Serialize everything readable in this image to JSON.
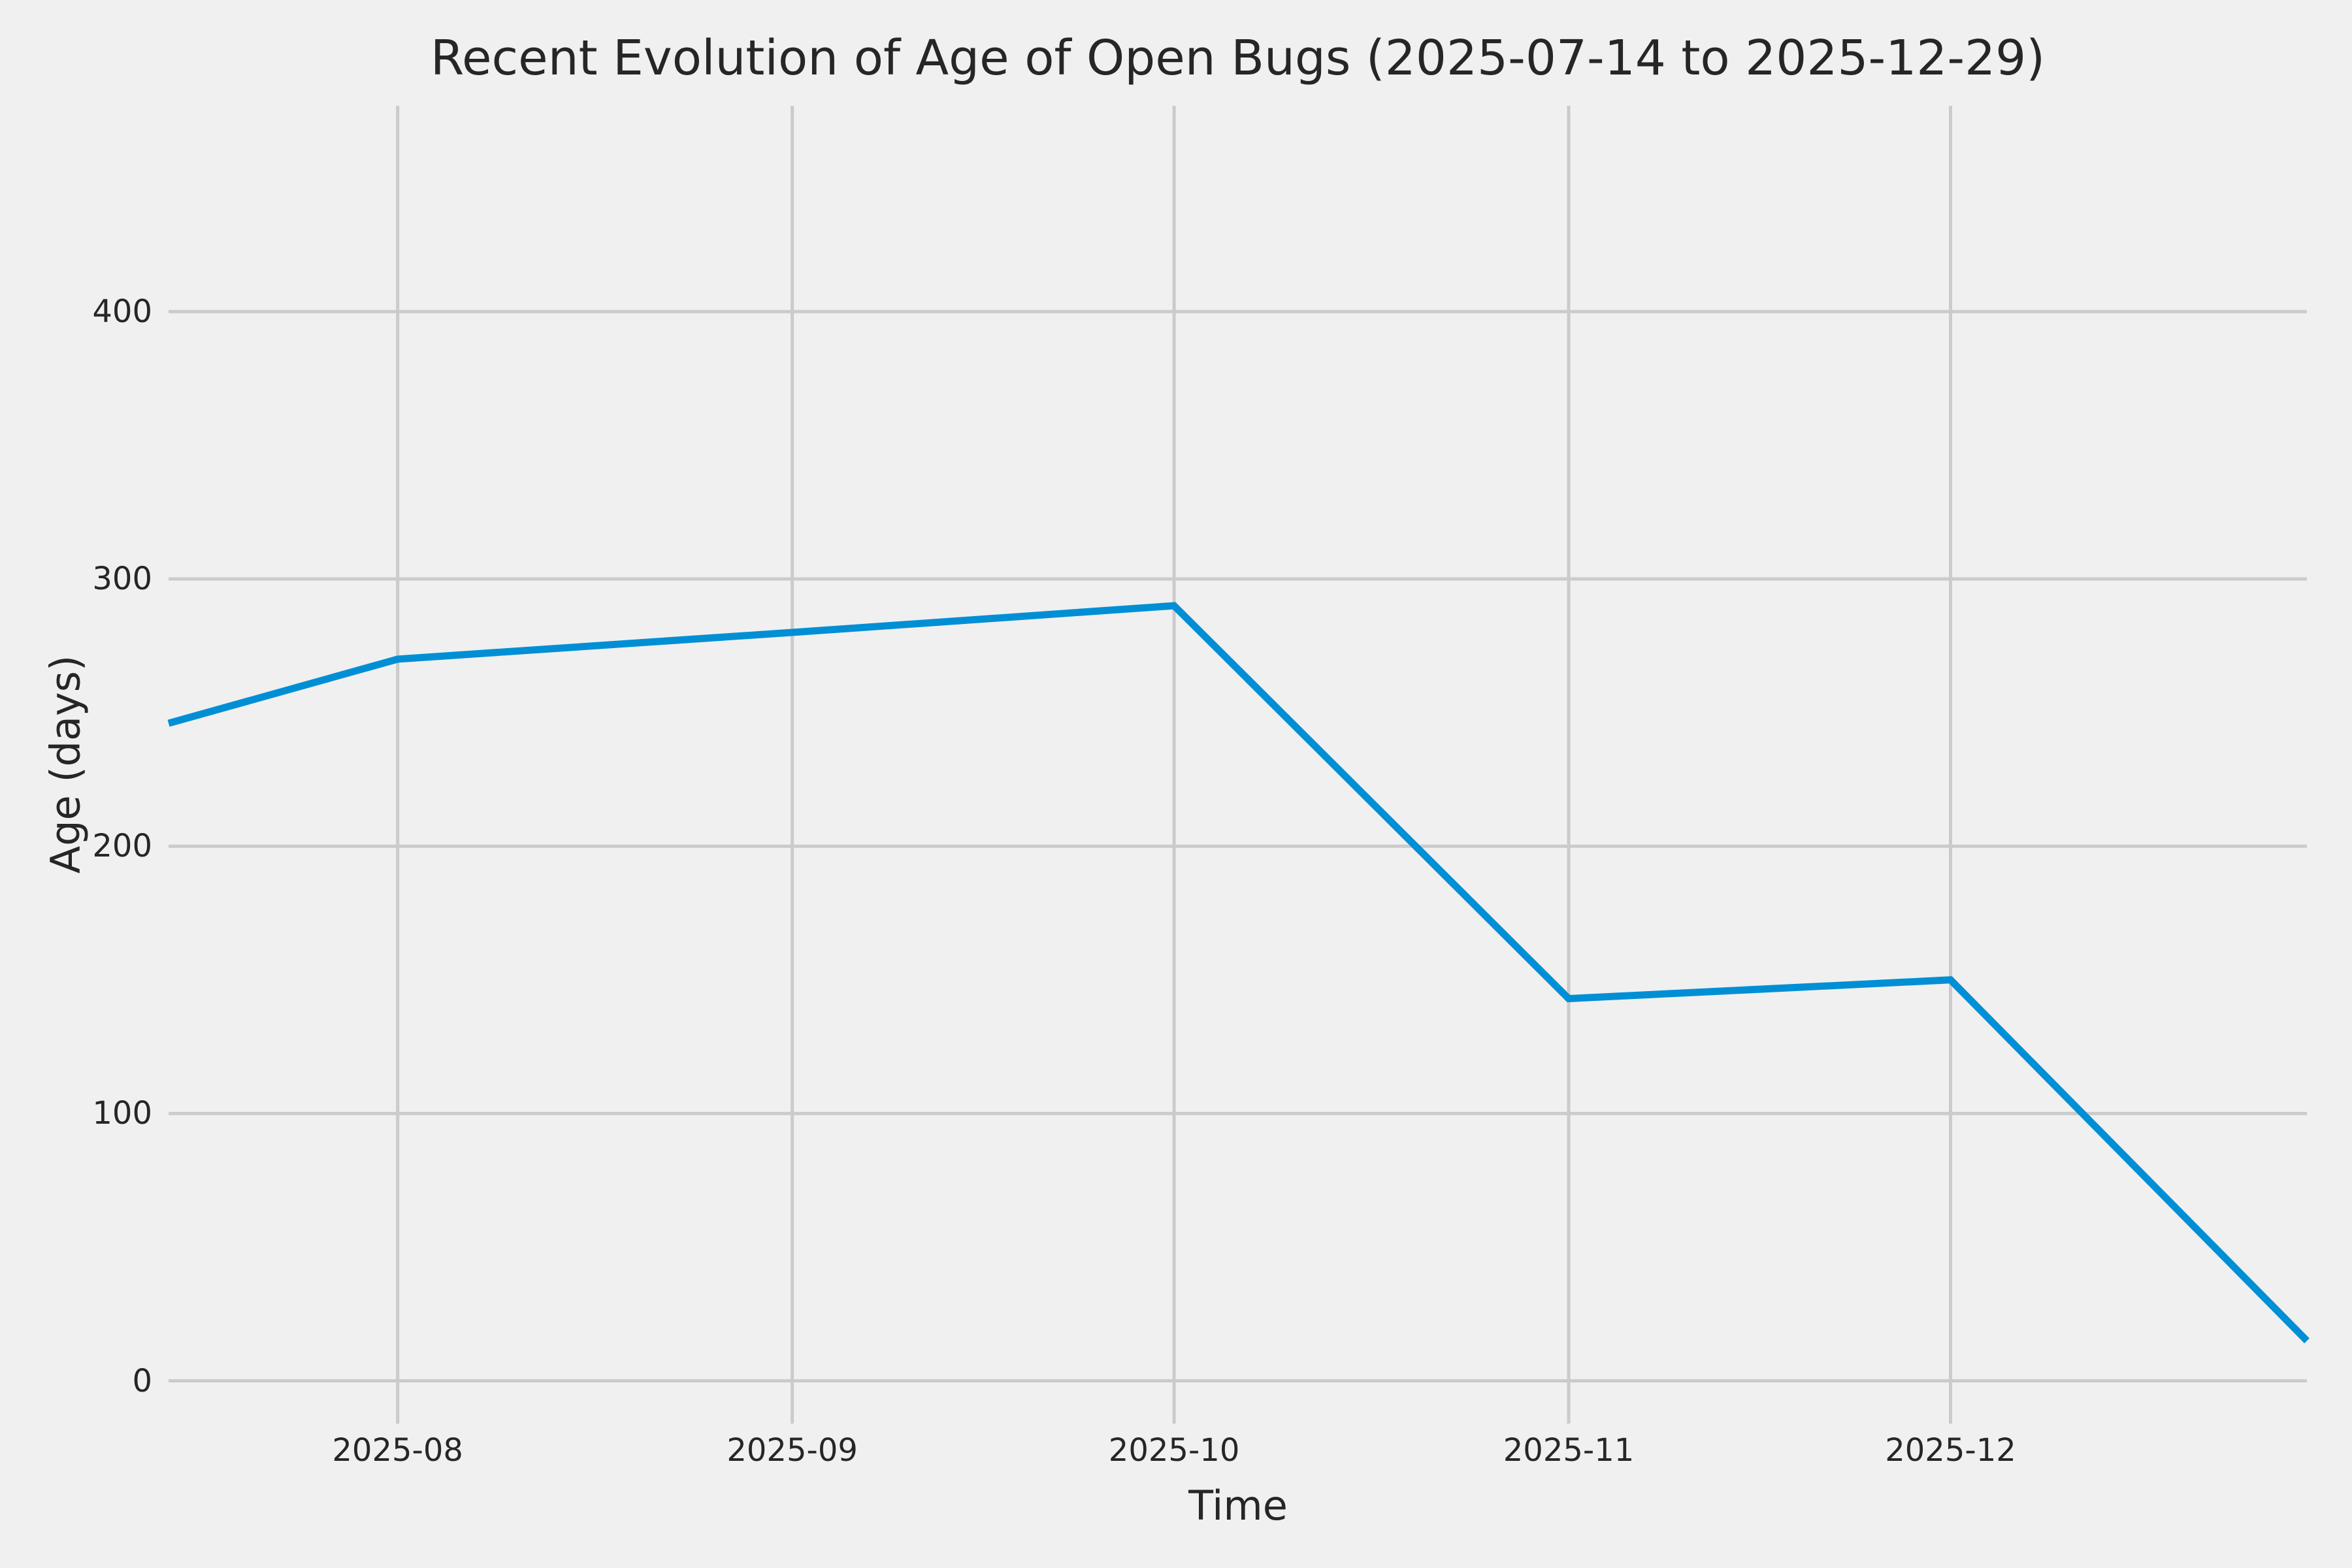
{
  "chart_data": {
    "type": "line",
    "title": "Recent Evolution of Age of Open Bugs (2025-07-14 to 2025-12-29)",
    "xlabel": "Time",
    "ylabel": "Age (days)",
    "x_range": {
      "start": "2025-07-14",
      "end": "2025-12-29"
    },
    "x_ticks": [
      {
        "label": "2025-08",
        "date": "2025-08-01"
      },
      {
        "label": "2025-09",
        "date": "2025-09-01"
      },
      {
        "label": "2025-10",
        "date": "2025-10-01"
      },
      {
        "label": "2025-11",
        "date": "2025-11-01"
      },
      {
        "label": "2025-12",
        "date": "2025-12-01"
      }
    ],
    "y_ticks": [
      {
        "label": "0",
        "value": 0
      },
      {
        "label": "100",
        "value": 100
      },
      {
        "label": "200",
        "value": 200
      },
      {
        "label": "300",
        "value": 300
      },
      {
        "label": "400",
        "value": 400
      }
    ],
    "ylim": [
      -16,
      477
    ],
    "grid": true,
    "legend": false,
    "colors": {
      "line": "#008fd5",
      "background": "#f0f0f0",
      "grid": "#cbcbcb",
      "text": "#262626"
    },
    "series": [
      {
        "points": [
          [
            "2025-07-14",
            246
          ],
          [
            "2025-08-01",
            270
          ],
          [
            "2025-09-01",
            280
          ],
          [
            "2025-10-01",
            290
          ],
          [
            "2025-11-01",
            143
          ],
          [
            "2025-12-01",
            150
          ],
          [
            "2025-12-29",
            15
          ]
        ]
      }
    ]
  }
}
